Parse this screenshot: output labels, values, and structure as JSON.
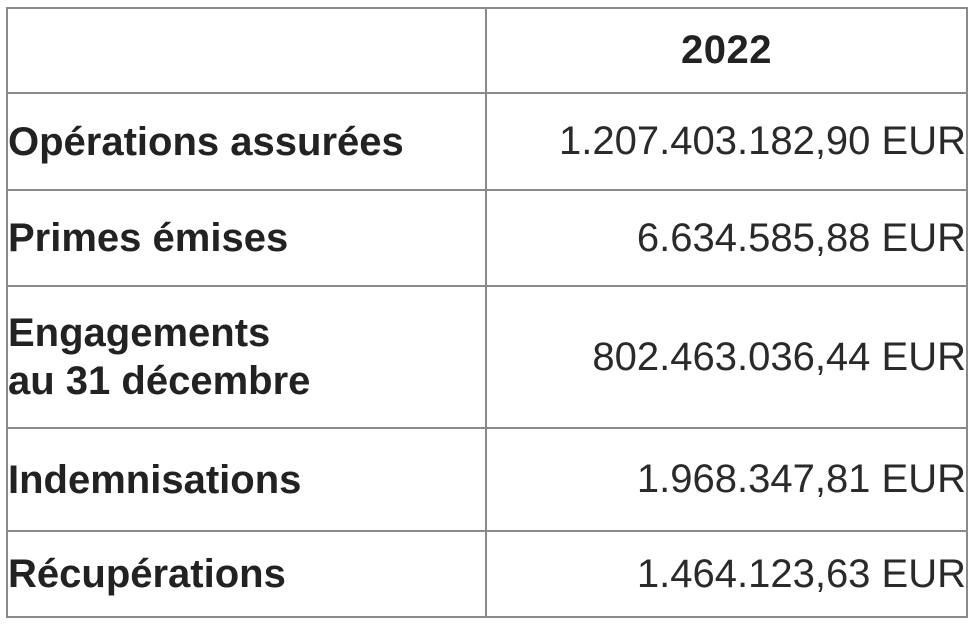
{
  "table": {
    "year_header": "2022",
    "rows": [
      {
        "label_line1": "Opérations assurées",
        "label_line2": "",
        "value": "1.207.403.182,90 EUR"
      },
      {
        "label_line1": "Primes émises",
        "label_line2": "",
        "value": "6.634.585,88 EUR"
      },
      {
        "label_line1": "Engagements",
        "label_line2": "au 31 décembre",
        "value": "802.463.036,44 EUR"
      },
      {
        "label_line1": "Indemnisations",
        "label_line2": "",
        "value": "1.968.347,81 EUR"
      },
      {
        "label_line1": "Récupérations",
        "label_line2": "",
        "value": "1.464.123,63 EUR"
      }
    ]
  }
}
